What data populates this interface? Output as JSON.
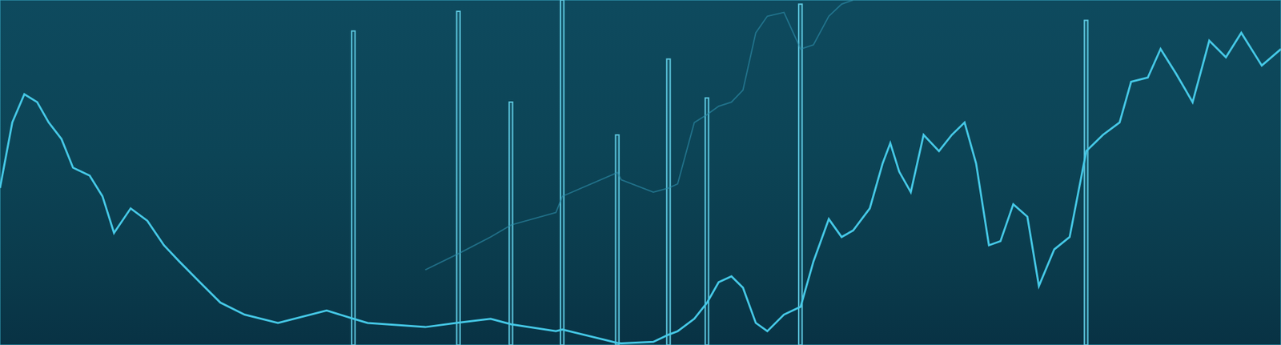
{
  "chart_data": {
    "type": "bar",
    "x": [
      0,
      0.96,
      1.9,
      2.9,
      3.8,
      4.8,
      5.7,
      7.0,
      8.0,
      8.9,
      10.2,
      11.5,
      12.8,
      14.0,
      15.6,
      17.2,
      19.1,
      21.7,
      25.5,
      27.6,
      28.7,
      33.2,
      35.8,
      38.3,
      39.9,
      43.4,
      43.9,
      48.2,
      48.5,
      51.0,
      52.2,
      52.9,
      54.2,
      55.2,
      56.1,
      57.1,
      58.0,
      59.0,
      59.9,
      61.2,
      62.5,
      63.5,
      64.7,
      65.7,
      66.6,
      67.9,
      68.9,
      69.5,
      70.2,
      71.1,
      72.1,
      73.3,
      74.3,
      75.3,
      76.2,
      77.2,
      78.1,
      79.1,
      80.2,
      81.1,
      82.3,
      83.5,
      84.8,
      86.1,
      87.4,
      88.3,
      89.6,
      90.6,
      91.8,
      93.1,
      94.4,
      95.7,
      96.9,
      98.5,
      100
    ],
    "xlim": [
      0,
      100
    ],
    "xticks": [
      0,
      9.4,
      21.2,
      33.1,
      44.8,
      56.6,
      68.4,
      80.3,
      92,
      100
    ],
    "ylim": [
      0,
      100
    ],
    "yticks": [
      0,
      6.4,
      40,
      74.4,
      100
    ],
    "grid": true,
    "tick_labels": false,
    "series": [
      {
        "type": "bar",
        "color": "#5cc6de",
        "values": [
          null,
          null,
          null,
          null,
          null,
          null,
          null,
          null,
          null,
          null,
          null,
          null,
          null,
          null,
          null,
          null,
          null,
          null,
          null,
          91.0,
          null,
          null,
          96.7,
          null,
          70.4,
          null,
          100,
          60.9,
          null,
          null,
          82.9,
          null,
          null,
          71.6,
          null,
          null,
          null,
          null,
          null,
          null,
          98.8,
          null,
          null,
          null,
          null,
          null,
          null,
          null,
          null,
          null,
          null,
          null,
          null,
          null,
          null,
          null,
          null,
          null,
          null,
          null,
          null,
          null,
          94.1,
          null,
          null,
          null,
          null,
          null,
          null,
          null,
          null,
          null,
          null,
          null,
          null
        ]
      },
      {
        "type": "line",
        "color": "#2f8fab",
        "values": [
          null,
          null,
          null,
          null,
          null,
          null,
          null,
          null,
          null,
          null,
          null,
          null,
          null,
          null,
          null,
          null,
          null,
          null,
          null,
          null,
          null,
          21.8,
          26.5,
          31.3,
          34.8,
          38.4,
          43.1,
          50.0,
          47.9,
          44.3,
          45.5,
          46.7,
          64.5,
          66.8,
          69.2,
          70.4,
          73.9,
          90.5,
          95.3,
          96.4,
          85.8,
          87.0,
          95.3,
          98.8,
          100,
          null,
          null,
          null,
          null,
          null,
          null,
          null,
          null,
          null,
          null,
          null,
          null,
          null,
          null,
          null,
          null,
          null,
          null,
          null,
          null,
          null,
          null,
          null,
          null,
          null,
          null,
          null,
          null,
          null,
          null
        ]
      },
      {
        "type": "line",
        "color": "#45c8e6",
        "values": [
          45.5,
          64.5,
          72.7,
          70.4,
          64.5,
          59.7,
          51.4,
          49.1,
          43.1,
          32.5,
          39.6,
          36.0,
          28.9,
          24.2,
          18.2,
          12.3,
          8.8,
          6.4,
          10.0,
          7.6,
          6.4,
          5.2,
          6.5,
          7.6,
          6.0,
          4.0,
          4.5,
          0.6,
          0.5,
          0.9,
          3.0,
          4.0,
          7.6,
          12.3,
          18.2,
          19.9,
          16.6,
          6.4,
          4.0,
          8.8,
          11.1,
          24.2,
          36.5,
          31.3,
          33.2,
          39.6,
          52.6,
          58.5,
          50.2,
          44.3,
          60.9,
          56.2,
          60.9,
          64.5,
          52.6,
          28.9,
          30.1,
          40.8,
          37.2,
          17.1,
          27.7,
          31.3,
          56.2,
          60.9,
          64.5,
          76.3,
          77.5,
          85.8,
          78.7,
          70.4,
          88.2,
          83.4,
          90.5,
          81.0,
          85.8
        ]
      }
    ]
  }
}
